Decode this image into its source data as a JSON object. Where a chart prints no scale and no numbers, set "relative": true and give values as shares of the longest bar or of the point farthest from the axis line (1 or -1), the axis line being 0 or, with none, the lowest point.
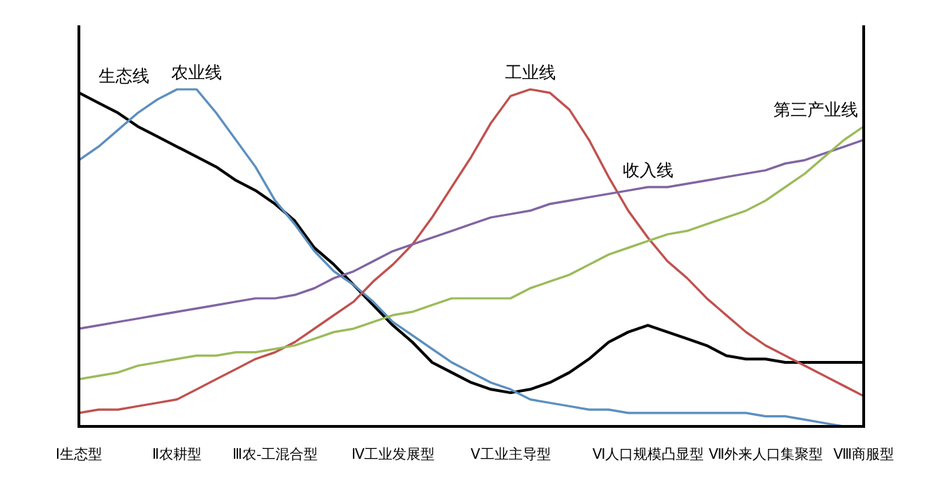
{
  "chart_data": {
    "type": "line",
    "relative": true,
    "categories": [
      "Ⅰ生态型",
      null,
      null,
      null,
      null,
      "Ⅱ农耕型",
      null,
      null,
      null,
      null,
      "Ⅲ农-工混合型",
      null,
      null,
      null,
      null,
      null,
      "Ⅳ工业发展型",
      null,
      null,
      null,
      null,
      null,
      "Ⅴ工业主导型",
      null,
      null,
      null,
      null,
      null,
      null,
      "Ⅵ人口规模凸显型",
      null,
      null,
      null,
      null,
      null,
      "Ⅶ外来人口集聚型",
      null,
      null,
      null,
      null,
      "Ⅷ商服型"
    ],
    "grid": false,
    "marker": "none",
    "line_style": "solid",
    "series": [
      {
        "name": "生态线",
        "color": "#000000",
        "values": [
          0.99,
          0.96,
          0.93,
          0.89,
          0.86,
          0.83,
          0.8,
          0.77,
          0.73,
          0.7,
          0.66,
          0.61,
          0.53,
          0.48,
          0.42,
          0.36,
          0.3,
          0.25,
          0.19,
          0.16,
          0.13,
          0.11,
          0.1,
          0.11,
          0.13,
          0.16,
          0.2,
          0.25,
          0.28,
          0.3,
          0.28,
          0.26,
          0.24,
          0.21,
          0.2,
          0.2,
          0.19,
          0.19,
          0.19,
          0.19,
          0.19
        ]
      },
      {
        "name": "农业线",
        "color": "#5b8fc0",
        "values": [
          0.79,
          0.83,
          0.88,
          0.93,
          0.97,
          1.0,
          1.0,
          0.93,
          0.85,
          0.77,
          0.67,
          0.6,
          0.52,
          0.46,
          0.42,
          0.37,
          0.31,
          0.27,
          0.23,
          0.19,
          0.16,
          0.13,
          0.11,
          0.08,
          0.07,
          0.06,
          0.05,
          0.05,
          0.04,
          0.04,
          0.04,
          0.04,
          0.04,
          0.04,
          0.04,
          0.03,
          0.03,
          0.02,
          0.01,
          0.0,
          0.0
        ]
      },
      {
        "name": "工业线",
        "color": "#c0504d",
        "values": [
          0.04,
          0.05,
          0.05,
          0.06,
          0.07,
          0.08,
          0.11,
          0.14,
          0.17,
          0.2,
          0.22,
          0.25,
          0.29,
          0.33,
          0.37,
          0.43,
          0.48,
          0.54,
          0.62,
          0.71,
          0.8,
          0.9,
          0.98,
          1.0,
          0.99,
          0.94,
          0.85,
          0.74,
          0.64,
          0.56,
          0.49,
          0.44,
          0.38,
          0.33,
          0.28,
          0.24,
          0.21,
          0.18,
          0.15,
          0.12,
          0.09
        ]
      },
      {
        "name": "收入线",
        "color": "#8064a2",
        "values": [
          0.29,
          0.3,
          0.31,
          0.32,
          0.33,
          0.34,
          0.35,
          0.36,
          0.37,
          0.38,
          0.38,
          0.39,
          0.41,
          0.44,
          0.46,
          0.49,
          0.52,
          0.54,
          0.56,
          0.58,
          0.6,
          0.62,
          0.63,
          0.64,
          0.66,
          0.67,
          0.68,
          0.69,
          0.7,
          0.71,
          0.71,
          0.72,
          0.73,
          0.74,
          0.75,
          0.76,
          0.78,
          0.79,
          0.81,
          0.83,
          0.85
        ]
      },
      {
        "name": "第三产业线",
        "color": "#9bbb59",
        "values": [
          0.14,
          0.15,
          0.16,
          0.18,
          0.19,
          0.2,
          0.21,
          0.21,
          0.22,
          0.22,
          0.23,
          0.24,
          0.26,
          0.28,
          0.29,
          0.31,
          0.33,
          0.34,
          0.36,
          0.38,
          0.38,
          0.38,
          0.38,
          0.41,
          0.43,
          0.45,
          0.48,
          0.51,
          0.53,
          0.55,
          0.57,
          0.58,
          0.6,
          0.62,
          0.64,
          0.67,
          0.71,
          0.75,
          0.8,
          0.85,
          0.89
        ]
      }
    ]
  }
}
